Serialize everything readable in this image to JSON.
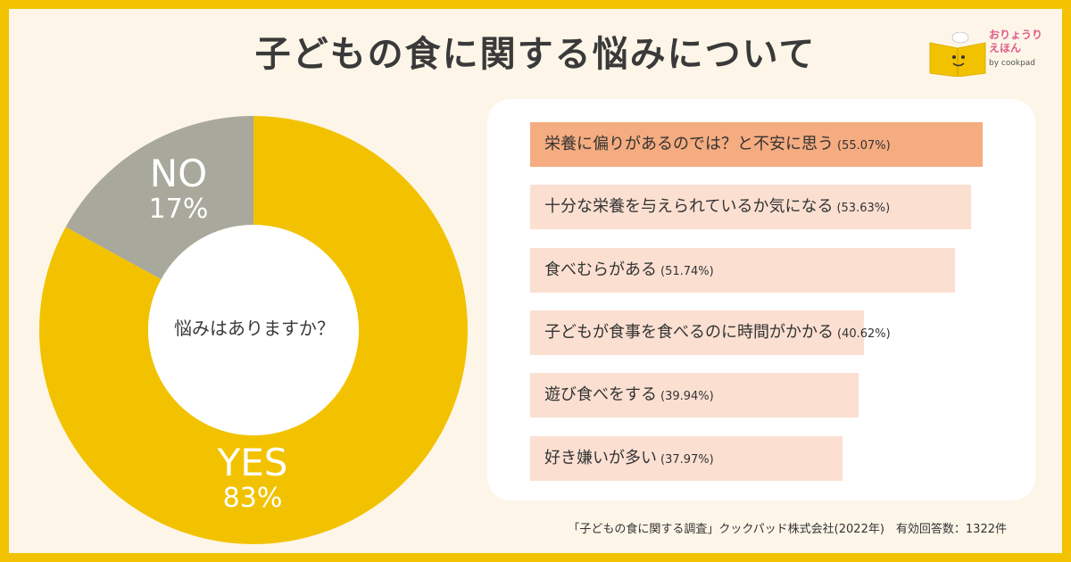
{
  "header": {
    "title": "子どもの食に関する悩みについて"
  },
  "logo": {
    "line1": "おりょうり",
    "line2": "えほん",
    "by": "by cookpad"
  },
  "donut": {
    "question": "悩みはありますか？",
    "colors": {
      "yes": "#f2c200",
      "no": "#a8a89c"
    }
  },
  "footer": {
    "source": "「子どもの食に関する調査」クックパッド株式会社(2022年)　有効回答数：1322件"
  },
  "chart_data": [
    {
      "type": "pie",
      "categories": [
        "YES",
        "NO"
      ],
      "values": [
        83,
        17
      ],
      "value_labels": [
        "83%",
        "17%"
      ],
      "title": "",
      "center_text": "悩みはありますか？"
    },
    {
      "type": "bar",
      "orientation": "horizontal",
      "categories": [
        "栄養に偏りがあるのでは？と不安に思う",
        "十分な栄養を与えられているか気になる",
        "食べむらがある",
        "子どもが食事を食べるのに時間がかかる",
        "遊び食べをする",
        "好き嫌いが多い"
      ],
      "values": [
        55.07,
        53.63,
        51.74,
        40.62,
        39.94,
        37.97
      ],
      "value_labels": [
        "(55.07%)",
        "(53.63%)",
        "(51.74%)",
        "(40.62%)",
        "(39.94%)",
        "(37.97%)"
      ],
      "colors": {
        "top": "#f5ac80",
        "others": "#fbe0d2"
      },
      "title": ""
    }
  ]
}
